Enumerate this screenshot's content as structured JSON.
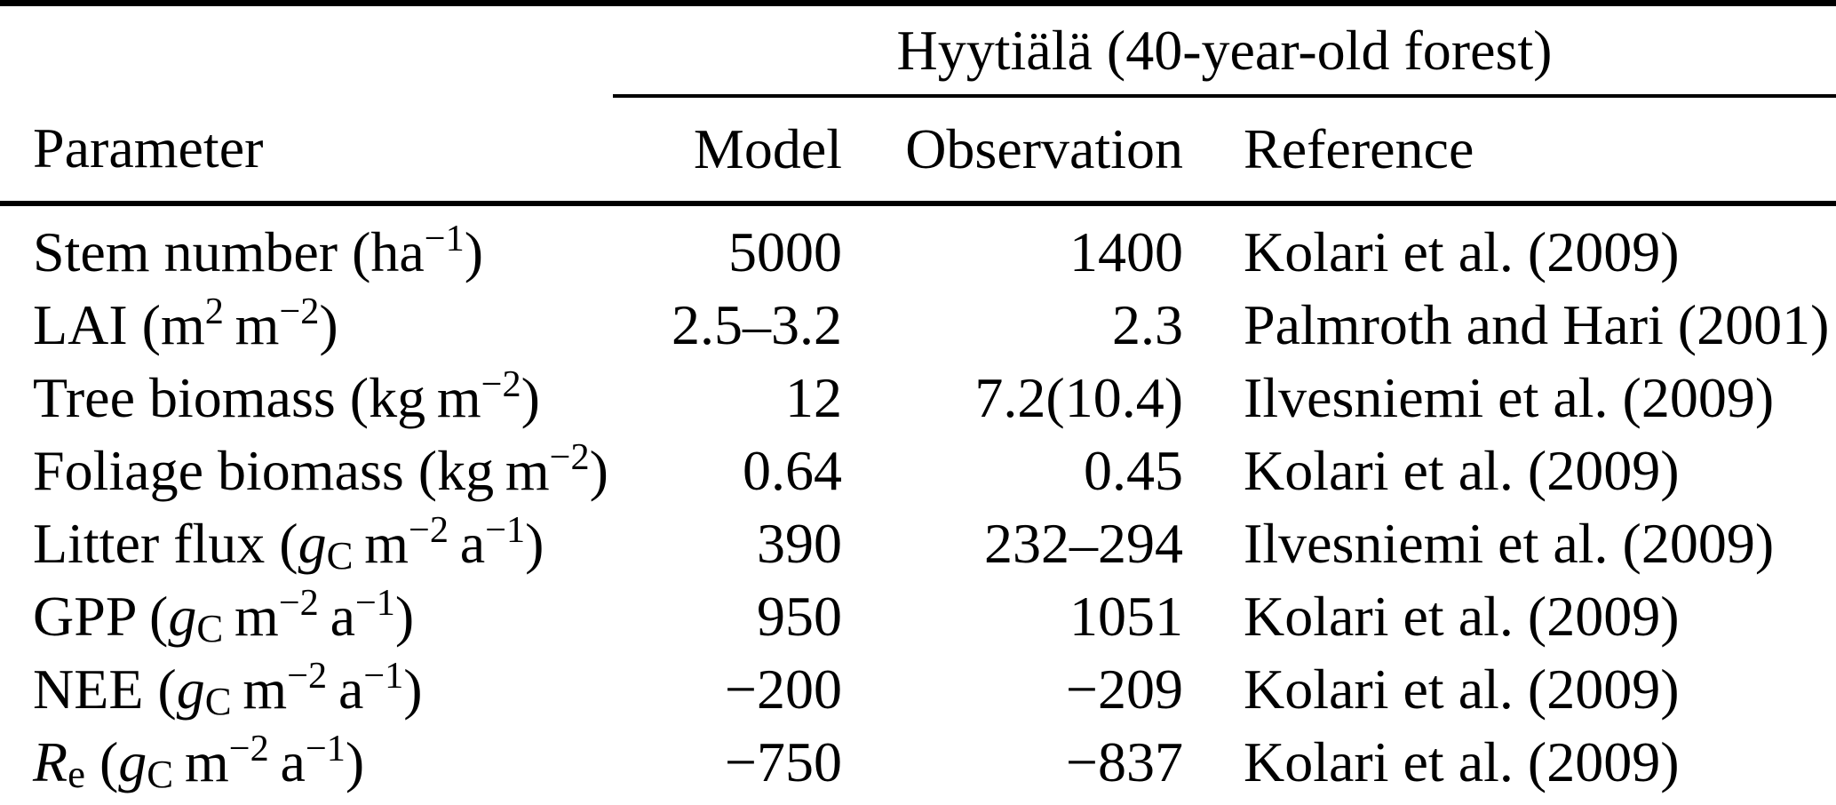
{
  "colors": {
    "text": "#000000",
    "background": "#ffffff",
    "rules": "#000000"
  },
  "table": {
    "group_header": "Hyytiälä (40-year-old forest)",
    "columns": [
      "Parameter",
      "Model",
      "Observation",
      "Reference"
    ],
    "rows": [
      {
        "parameter": [
          {
            "t": "Stem number (ha"
          },
          {
            "sup": "−1"
          },
          {
            "t": ")"
          }
        ],
        "model": "5000",
        "observation": "1400",
        "reference": "Kolari et al. (2009)"
      },
      {
        "parameter": [
          {
            "t": "LAI (m"
          },
          {
            "sup": "2"
          },
          {
            "t": " m"
          },
          {
            "sup": "−2"
          },
          {
            "t": ")"
          }
        ],
        "model": "2.5–3.2",
        "observation": "2.3",
        "reference": "Palmroth and Hari (2001)"
      },
      {
        "parameter": [
          {
            "t": "Tree biomass (kg m"
          },
          {
            "sup": "−2"
          },
          {
            "t": ")"
          }
        ],
        "model": "12",
        "observation": "7.2(10.4)",
        "reference": "Ilvesniemi et al. (2009)"
      },
      {
        "parameter": [
          {
            "t": "Foliage biomass (kg m"
          },
          {
            "sup": "−2"
          },
          {
            "t": ")"
          }
        ],
        "model": "0.64",
        "observation": "0.45",
        "reference": "Kolari et al. (2009)"
      },
      {
        "parameter": [
          {
            "t": "Litter flux ("
          },
          {
            "i": "g"
          },
          {
            "sub": "C"
          },
          {
            "t": " m"
          },
          {
            "sup": "−2"
          },
          {
            "t": " a"
          },
          {
            "sup": "−1"
          },
          {
            "t": ")"
          }
        ],
        "model": "390",
        "observation": "232–294",
        "reference": "Ilvesniemi et al. (2009)"
      },
      {
        "parameter": [
          {
            "t": "GPP ("
          },
          {
            "i": "g"
          },
          {
            "sub": "C"
          },
          {
            "t": " m"
          },
          {
            "sup": "−2"
          },
          {
            "t": " a"
          },
          {
            "sup": "−1"
          },
          {
            "t": ")"
          }
        ],
        "model": "950",
        "observation": "1051",
        "reference": "Kolari et al. (2009)"
      },
      {
        "parameter": [
          {
            "t": "NEE ("
          },
          {
            "i": "g"
          },
          {
            "sub": "C"
          },
          {
            "t": " m"
          },
          {
            "sup": "−2"
          },
          {
            "t": " a"
          },
          {
            "sup": "−1"
          },
          {
            "t": ")"
          }
        ],
        "model": "−200",
        "observation": "−209",
        "reference": "Kolari et al. (2009)"
      },
      {
        "parameter": [
          {
            "i": "R"
          },
          {
            "sub": "e"
          },
          {
            "t": " ("
          },
          {
            "i": "g"
          },
          {
            "sub": "C"
          },
          {
            "t": " m"
          },
          {
            "sup": "−2"
          },
          {
            "t": " a"
          },
          {
            "sup": "−1"
          },
          {
            "t": ")"
          }
        ],
        "model": "−750",
        "observation": "−837",
        "reference": "Kolari et al. (2009)"
      }
    ]
  }
}
